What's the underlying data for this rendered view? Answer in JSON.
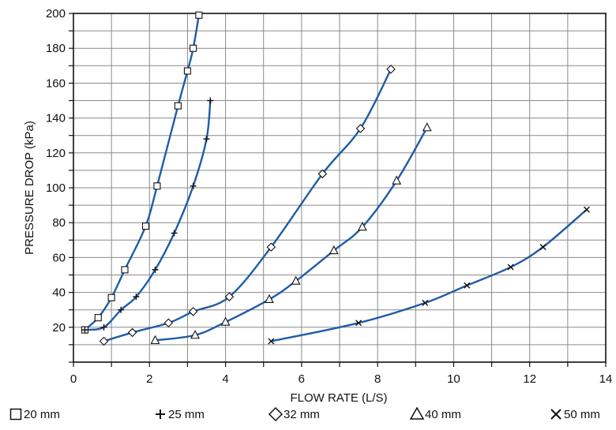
{
  "chart_data": {
    "type": "scatter",
    "title": "",
    "xlabel": "FLOW RATE (L/S)",
    "ylabel": "PRESSURE DROP (kPa)",
    "xlim": [
      0,
      14
    ],
    "ylim": [
      0,
      200
    ],
    "x_major_ticks": [
      0,
      2,
      4,
      6,
      8,
      10,
      12,
      14
    ],
    "x_minor_step": 1,
    "y_major_ticks": [
      20,
      40,
      60,
      80,
      100,
      120,
      140,
      160,
      180,
      200
    ],
    "y_minor_step": 10,
    "grid": true,
    "legend_position": "bottom",
    "line_color": "#1f5ca6",
    "series": [
      {
        "name": "20 mm",
        "marker": "square",
        "points": [
          [
            0.3,
            18.5
          ],
          [
            0.65,
            25.5
          ],
          [
            1.0,
            37
          ],
          [
            1.35,
            53
          ],
          [
            1.9,
            78
          ],
          [
            2.2,
            101
          ],
          [
            2.75,
            147
          ],
          [
            3.0,
            167
          ],
          [
            3.15,
            180
          ],
          [
            3.3,
            199
          ]
        ]
      },
      {
        "name": "25 mm",
        "marker": "plus",
        "points": [
          [
            0.3,
            18.5
          ],
          [
            0.8,
            20
          ],
          [
            1.25,
            30
          ],
          [
            1.65,
            37.5
          ],
          [
            2.15,
            53
          ],
          [
            2.65,
            74
          ],
          [
            3.15,
            101
          ],
          [
            3.5,
            128
          ],
          [
            3.6,
            150
          ]
        ]
      },
      {
        "name": "32 mm",
        "marker": "diamond",
        "points": [
          [
            0.8,
            12
          ],
          [
            1.55,
            17
          ],
          [
            2.5,
            22.5
          ],
          [
            3.15,
            29
          ],
          [
            4.1,
            37.5
          ],
          [
            5.2,
            66
          ],
          [
            6.55,
            108
          ],
          [
            7.55,
            134
          ],
          [
            8.35,
            168
          ]
        ]
      },
      {
        "name": "40 mm",
        "marker": "triangle",
        "points": [
          [
            2.15,
            12.5
          ],
          [
            3.2,
            15.5
          ],
          [
            4.0,
            23
          ],
          [
            5.15,
            36
          ],
          [
            5.85,
            46.5
          ],
          [
            6.85,
            64
          ],
          [
            7.6,
            77.5
          ],
          [
            8.5,
            104
          ],
          [
            9.3,
            134.5
          ]
        ]
      },
      {
        "name": "50 mm",
        "marker": "x",
        "points": [
          [
            5.2,
            12
          ],
          [
            7.5,
            22.5
          ],
          [
            9.25,
            34
          ],
          [
            10.35,
            44
          ],
          [
            11.5,
            54.5
          ],
          [
            12.35,
            66
          ],
          [
            13.5,
            87.5
          ]
        ]
      }
    ]
  }
}
